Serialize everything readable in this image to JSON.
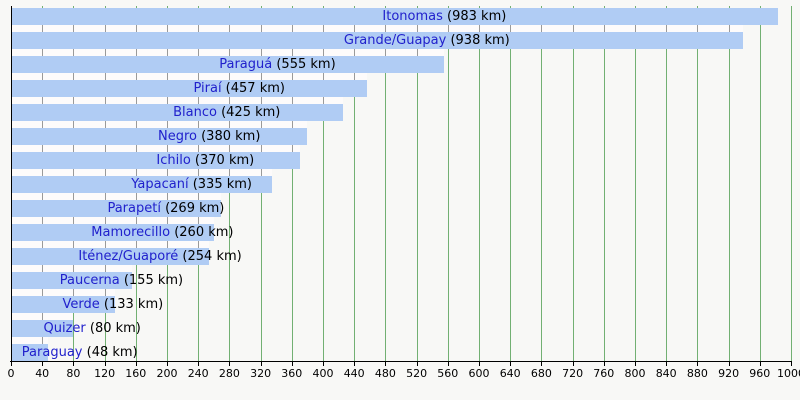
{
  "chart_data": {
    "type": "bar",
    "orientation": "horizontal",
    "title": "",
    "xlabel": "",
    "ylabel": "",
    "unit": "km",
    "label_format": "{name} ({value} km)",
    "categories": [
      "Itonomas",
      "Grande/Guapay",
      "Paraguá",
      "Piraí",
      "Blanco",
      "Negro",
      "Ichilo",
      "Yapacaní",
      "Parapetí",
      "Mamorecillo",
      "Iténez/Guaporé",
      "Paucerna",
      "Verde",
      "Quizer",
      "Paraguay"
    ],
    "values": [
      983,
      938,
      555,
      457,
      425,
      380,
      370,
      335,
      269,
      260,
      254,
      155,
      133,
      80,
      48
    ],
    "bar_labels": [
      "Itonomas (983 km)",
      "Grande/Guapay (938 km)",
      "Paraguá (555 km)",
      "Piraí (457 km)",
      "Blanco (425 km)",
      "Negro (380 km)",
      "Ichilo (370 km)",
      "Yapacaní (335 km)",
      "Parapetí (269 km)",
      "Mamorecillo (260 km)",
      "Iténez/Guaporé (254 km)",
      "Paucerna (155 km)",
      "Verde (133 km)",
      "Quizer (80 km)",
      "Paraguay (48 km)"
    ],
    "xlim": [
      0,
      1000
    ],
    "x_tick_step": 40,
    "x_ticks": [
      0,
      40,
      80,
      120,
      160,
      200,
      240,
      280,
      320,
      360,
      400,
      440,
      480,
      520,
      560,
      600,
      640,
      680,
      720,
      760,
      800,
      840,
      880,
      920,
      960,
      1000
    ],
    "grid": true,
    "legend": false
  },
  "colors": {
    "background": "#f8f8f6",
    "bar": "#b0ccf4",
    "gridline": "#72b072",
    "gap_background": "#fdfbfb",
    "gap_tick": "#9a9a9a",
    "axis": "#000000",
    "river_link": "#2121cc",
    "value_text": "#000000",
    "tick_label": "#000000"
  }
}
